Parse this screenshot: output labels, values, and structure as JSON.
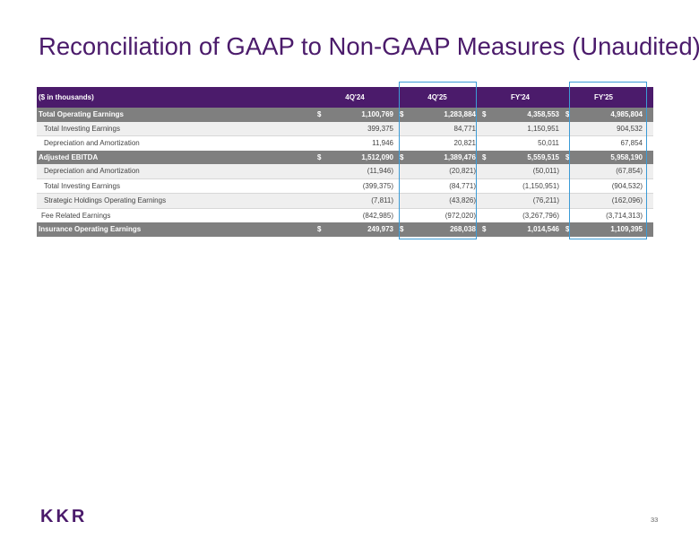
{
  "title": "Reconciliation of GAAP to Non-GAAP Measures (Unaudited)",
  "table": {
    "label_header": "($ in thousands)",
    "columns": [
      "4Q'24",
      "4Q'25",
      "FY'24",
      "FY'25"
    ],
    "rows": [
      {
        "label": "Total Operating Earnings",
        "cur": [
          "$",
          "$",
          "$",
          "$"
        ],
        "values": [
          "1,100,769",
          "1,283,884",
          "4,358,553",
          "4,985,804"
        ]
      },
      {
        "label": "Total Investing Earnings",
        "cur": [
          "",
          "",
          "",
          ""
        ],
        "values": [
          "399,375",
          "84,771",
          "1,150,951",
          "904,532"
        ]
      },
      {
        "label": "Depreciation and Amortization",
        "cur": [
          "",
          "",
          "",
          ""
        ],
        "values": [
          "11,946",
          "20,821",
          "50,011",
          "67,854"
        ]
      },
      {
        "label": "Adjusted EBITDA",
        "cur": [
          "$",
          "$",
          "$",
          "$"
        ],
        "values": [
          "1,512,090",
          "1,389,476",
          "5,559,515",
          "5,958,190"
        ]
      },
      {
        "label": "Depreciation and Amortization",
        "cur": [
          "",
          "",
          "",
          ""
        ],
        "values": [
          "(11,946)",
          "(20,821)",
          "(50,011)",
          "(67,854)"
        ]
      },
      {
        "label": "Total Investing Earnings",
        "cur": [
          "",
          "",
          "",
          ""
        ],
        "values": [
          "(399,375)",
          "(84,771)",
          "(1,150,951)",
          "(904,532)"
        ]
      },
      {
        "label": "Strategic Holdings Operating Earnings",
        "cur": [
          "",
          "",
          "",
          ""
        ],
        "values": [
          "(7,811)",
          "(43,826)",
          "(76,211)",
          "(162,096)"
        ]
      },
      {
        "label": "Fee Related Earnings",
        "cur": [
          "",
          "",
          "",
          ""
        ],
        "values": [
          "(842,985)",
          "(972,020)",
          "(3,267,796)",
          "(3,714,313)"
        ]
      },
      {
        "label": "Insurance Operating Earnings",
        "cur": [
          "$",
          "$",
          "$",
          "$"
        ],
        "values": [
          "249,973",
          "268,038",
          "1,014,546",
          "1,109,395"
        ]
      }
    ]
  },
  "logo": "KKR",
  "page_number": "33"
}
